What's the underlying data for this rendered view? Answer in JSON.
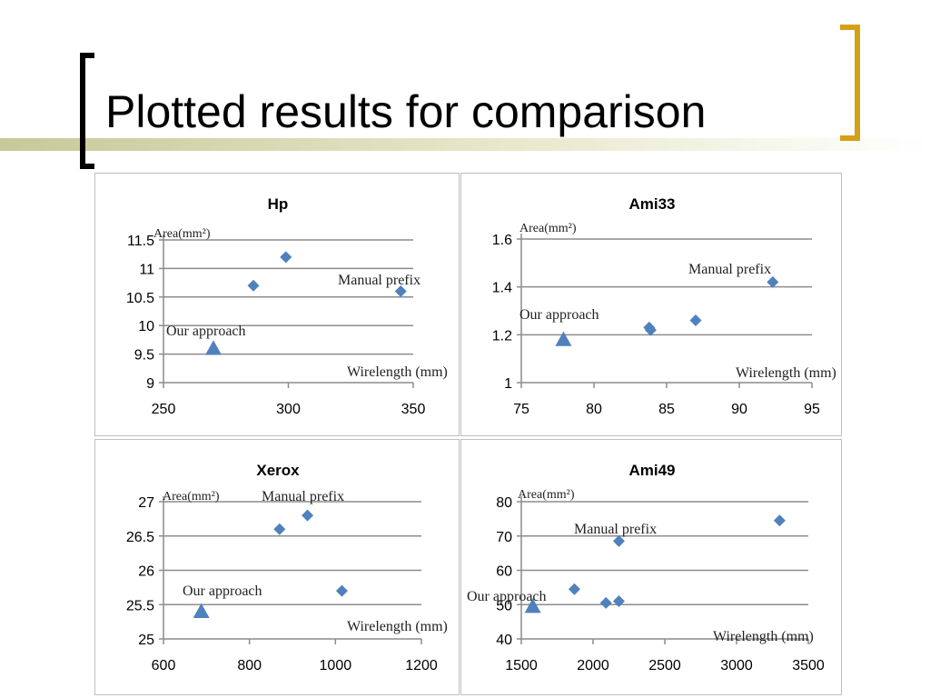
{
  "slide": {
    "title": "Plotted results for comparison"
  },
  "colors": {
    "marker": "#4f81bd",
    "grid": "#8c8c8c",
    "left_bracket": "#000000",
    "right_bracket": "#d4a017"
  },
  "chart_data": [
    {
      "type": "scatter",
      "title": "Hp",
      "ylabel": "Area(mm²)",
      "xlabel": "Wirelength (mm)",
      "xlim": [
        250,
        350
      ],
      "ylim": [
        9,
        11.5
      ],
      "xticks": [
        250,
        300,
        350
      ],
      "yticks": [
        9,
        9.5,
        10,
        10.5,
        11,
        11.5
      ],
      "grid": true,
      "ours": {
        "label": "Our approach",
        "points": [
          [
            270,
            9.6
          ]
        ]
      },
      "others": {
        "points": [
          [
            286,
            10.7
          ],
          [
            299,
            11.2
          ],
          [
            345,
            10.6
          ]
        ]
      },
      "annotations": [
        "Manual prefix"
      ]
    },
    {
      "type": "scatter",
      "title": "Ami33",
      "ylabel": "Area(mm²)",
      "xlabel": "Wirelength (mm)",
      "xlim": [
        75,
        95
      ],
      "ylim": [
        1,
        1.6
      ],
      "xticks": [
        75,
        80,
        85,
        90,
        95
      ],
      "yticks": [
        1,
        1.2,
        1.4,
        1.6
      ],
      "grid": true,
      "ours": {
        "label": "Our approach",
        "points": [
          [
            77.9,
            1.18
          ]
        ]
      },
      "others": {
        "points": [
          [
            83.8,
            1.23
          ],
          [
            83.9,
            1.22
          ],
          [
            87,
            1.26
          ],
          [
            92.3,
            1.42
          ]
        ]
      },
      "annotations": [
        "Manual prefix"
      ]
    },
    {
      "type": "scatter",
      "title": "Xerox",
      "ylabel": "Area(mm²)",
      "xlabel": "Wirelength (mm)",
      "xlim": [
        600,
        1200
      ],
      "ylim": [
        25,
        27
      ],
      "xticks": [
        600,
        800,
        1000,
        1200
      ],
      "yticks": [
        25,
        25.5,
        26,
        26.5,
        27
      ],
      "grid": true,
      "ours": {
        "label": "Our approach",
        "points": [
          [
            688,
            25.4
          ]
        ]
      },
      "others": {
        "points": [
          [
            870,
            26.6
          ],
          [
            935,
            26.8
          ],
          [
            1015,
            25.7
          ]
        ]
      },
      "annotations": [
        "Manual prefix"
      ]
    },
    {
      "type": "scatter",
      "title": "Ami49",
      "ylabel": "Area(mm²)",
      "xlabel": "Wirelength (mm)",
      "xlim": [
        1500,
        3500
      ],
      "ylim": [
        40,
        80
      ],
      "xticks": [
        1500,
        2000,
        2500,
        3000,
        3500
      ],
      "yticks": [
        40,
        50,
        60,
        70,
        80
      ],
      "grid": true,
      "ours": {
        "label": "Our approach",
        "points": [
          [
            1580,
            49.5
          ]
        ]
      },
      "others": {
        "points": [
          [
            1870,
            54.5
          ],
          [
            2090,
            50.5
          ],
          [
            2180,
            51
          ],
          [
            2180,
            68.5
          ],
          [
            3300,
            74.5
          ]
        ]
      },
      "annotations": [
        "Manual prefix"
      ]
    }
  ]
}
